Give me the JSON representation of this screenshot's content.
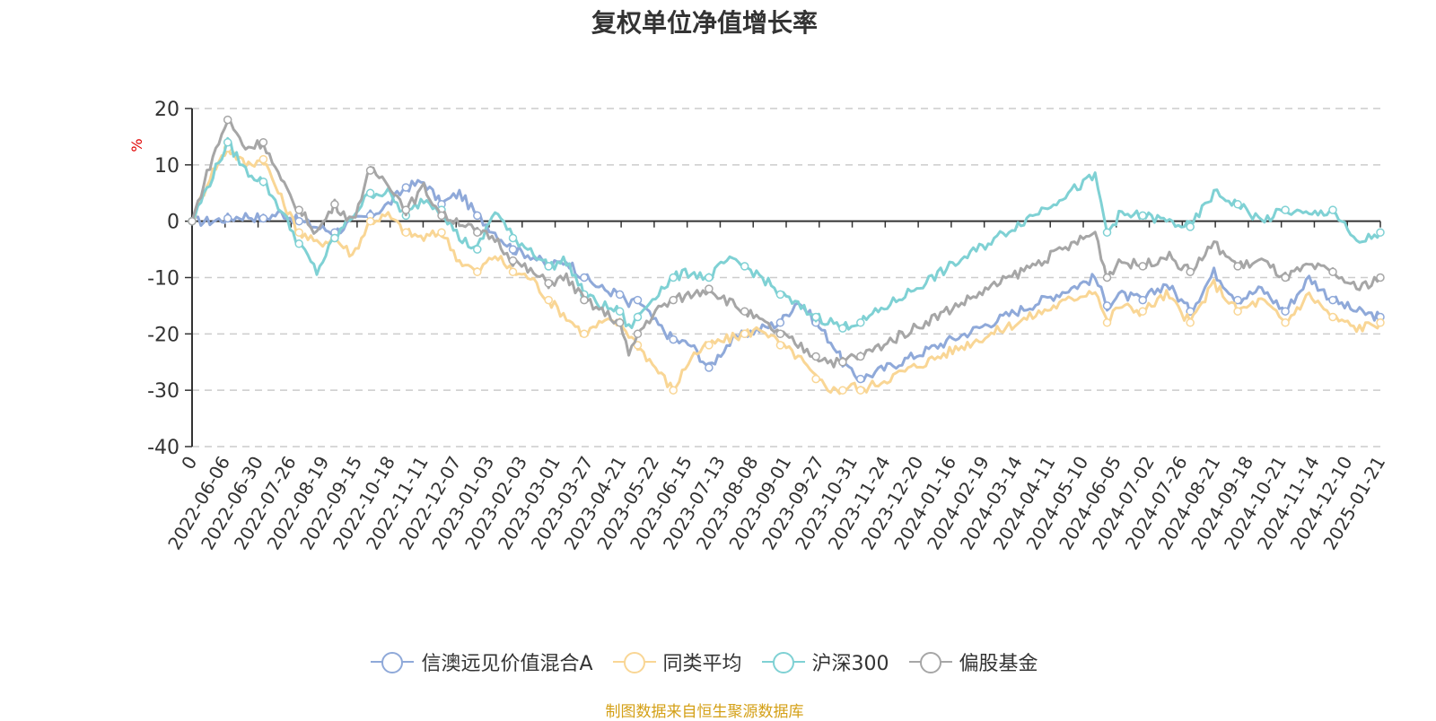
{
  "source_note": "制图数据来自恒生聚源数据库",
  "colors": {
    "source": "#d4a017",
    "unit": "#e00000",
    "axis": "#333333",
    "grid": "#cccccc"
  },
  "chart_data": {
    "type": "line",
    "title": "复权单位净值增长率",
    "ylabel": "%",
    "xlabel": "",
    "ylim": [
      -40,
      20
    ],
    "yticks": [
      "20",
      "10",
      "0",
      "-10",
      "-20",
      "-30",
      "-40"
    ],
    "ytick_values": [
      20,
      10,
      0,
      -10,
      -20,
      -30,
      -40
    ],
    "grid": "horizontal-dashed",
    "legend_position": "bottom",
    "x_tick_labels": [
      "0",
      "2022-06-06",
      "2022-06-30",
      "2022-07-26",
      "2022-08-19",
      "2022-09-15",
      "2022-10-18",
      "2022-11-11",
      "2022-12-07",
      "2023-01-03",
      "2023-02-03",
      "2023-03-01",
      "2023-03-27",
      "2023-04-21",
      "2023-05-22",
      "2023-06-15",
      "2023-07-13",
      "2023-08-08",
      "2023-09-01",
      "2023-09-27",
      "2023-10-31",
      "2023-11-24",
      "2023-12-20",
      "2024-01-16",
      "2024-02-19",
      "2024-03-14",
      "2024-04-11",
      "2024-05-10",
      "2024-06-05",
      "2024-07-02",
      "2024-07-26",
      "2024-08-21",
      "2024-09-18",
      "2024-10-21",
      "2024-11-14",
      "2024-12-10",
      "2025-01-21"
    ],
    "x_index": [
      0,
      2,
      4,
      6,
      8,
      10,
      12,
      14,
      16,
      18,
      20,
      22,
      24,
      26,
      28,
      30,
      32,
      34,
      36,
      38,
      40,
      42,
      44,
      46,
      48,
      49,
      50,
      52,
      54,
      56,
      58,
      60,
      62,
      64,
      66,
      68,
      70,
      72,
      73,
      74,
      75
    ],
    "series": [
      {
        "name": "信澳远见价值混合A",
        "color": "#8fa9d9",
        "values": [
          0,
          0,
          0.5,
          1,
          0.5,
          1.5,
          0,
          -1,
          -2,
          0,
          1,
          3,
          6,
          7,
          3,
          5,
          1,
          -2,
          -5,
          -6,
          -8,
          -7,
          -10,
          -12,
          -13,
          -15,
          -14,
          -18,
          -21,
          -22,
          -26,
          -22,
          -20,
          -19,
          -18,
          -14,
          -18,
          -22,
          -25,
          -27,
          -28
        ]
      },
      {
        "name": "同类平均",
        "color": "#f9d695",
        "values": [
          0,
          8,
          13,
          10,
          11,
          4,
          -2,
          -4,
          -3,
          -6,
          0,
          1,
          -2,
          -3,
          -2,
          -7,
          -9,
          -6,
          -9,
          -10,
          -14,
          -17,
          -20,
          -18,
          -18,
          -20,
          -22,
          -26,
          -30,
          -24,
          -22,
          -21,
          -20,
          -19,
          -22,
          -24,
          -28,
          -30,
          -30,
          -29,
          -30
        ]
      },
      {
        "name": "沪深300",
        "color": "#7fd1d4",
        "values": [
          0,
          7,
          14,
          9,
          7,
          2,
          -4,
          -9,
          -3,
          1,
          5,
          5,
          1,
          4,
          2,
          -3,
          -5,
          2,
          -3,
          -5,
          -8,
          -7,
          -13,
          -15,
          -16,
          -19,
          -17,
          -13,
          -10,
          -9,
          -10,
          -7,
          -8,
          -10,
          -13,
          -15,
          -17,
          -18,
          -19,
          -18,
          -18
        ]
      },
      {
        "name": "偏股基金",
        "color": "#a6a6a6",
        "values": [
          0,
          10,
          18,
          13,
          14,
          7,
          2,
          -2,
          3,
          0,
          9,
          7,
          2,
          6,
          1,
          0,
          -2,
          -3,
          -7,
          -9,
          -11,
          -10,
          -14,
          -16,
          -18,
          -24,
          -20,
          -16,
          -14,
          -13,
          -12,
          -14,
          -16,
          -18,
          -20,
          -22,
          -24,
          -25,
          -25,
          -24,
          -24
        ]
      }
    ],
    "tail_x_index": [
      75,
      76,
      77,
      78,
      80,
      82,
      84,
      86,
      88,
      90,
      92,
      94,
      96,
      98,
      100
    ],
    "tail_series": [
      [
        -28,
        -10,
        -15,
        -13,
        -14,
        -11,
        -16,
        -9,
        -14,
        -12,
        -16,
        -10,
        -14,
        -16,
        -17
      ],
      [
        -30,
        -12,
        -18,
        -15,
        -16,
        -13,
        -18,
        -11,
        -16,
        -14,
        -18,
        -13,
        -17,
        -19,
        -18
      ],
      [
        -18,
        8,
        -2,
        1,
        1,
        0,
        -1,
        5,
        3,
        0,
        2,
        1,
        2,
        -4,
        -2
      ],
      [
        -24,
        -2,
        -10,
        -7,
        -8,
        -6,
        -9,
        -4,
        -8,
        -7,
        -10,
        -8,
        -9,
        -12,
        -10
      ]
    ]
  }
}
